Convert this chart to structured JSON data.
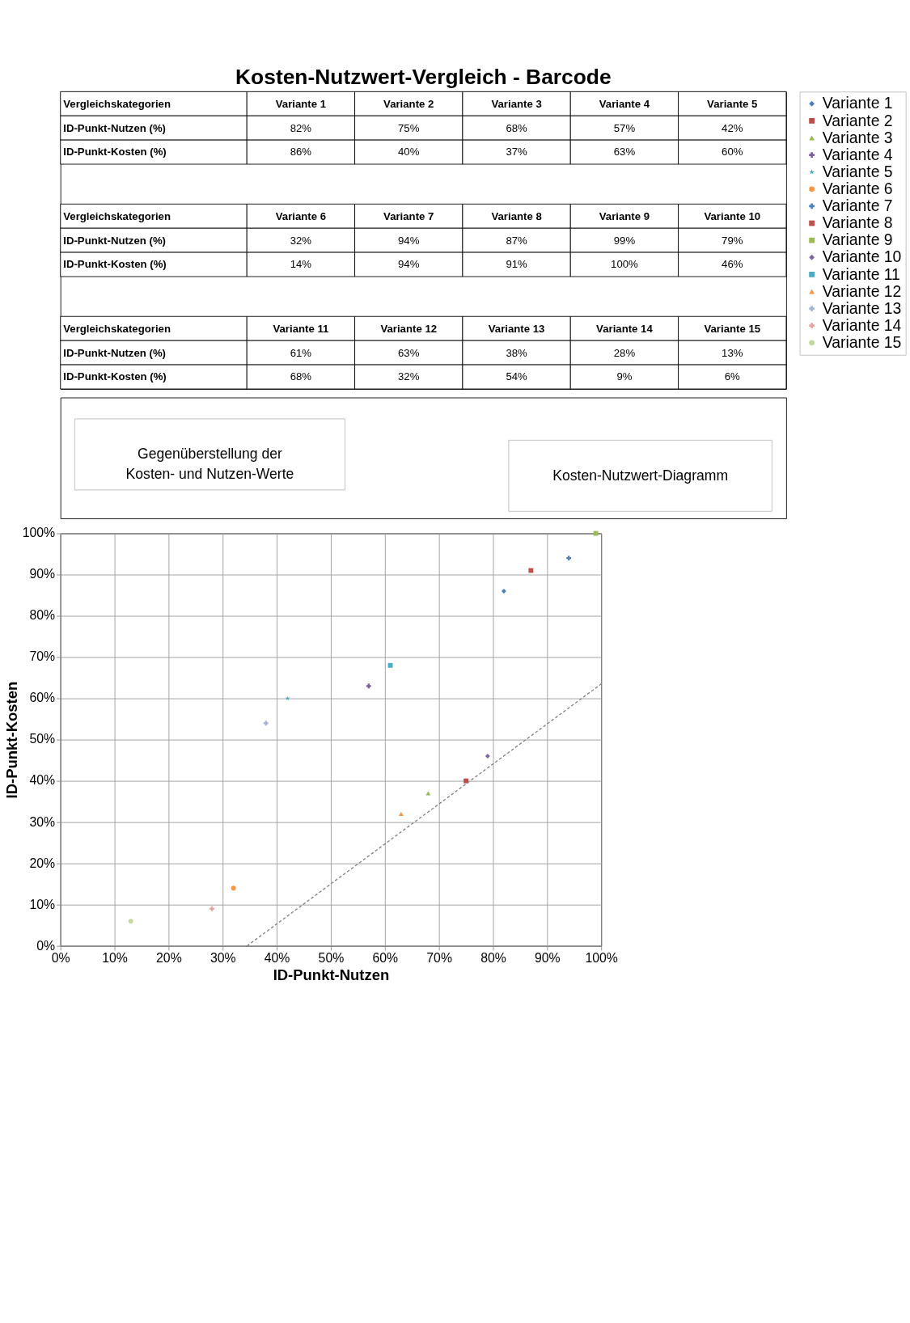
{
  "chart_data": [
    {
      "type": "other",
      "title": "Kosten-Nutzwert-Vergleich - Barcode",
      "annotations": [
        "Vergleichskategorien"
      ],
      "categories": [
        "Variante 1",
        "Variante 2",
        "Variante 3",
        "Variante 4",
        "Variante 5",
        "Variante 6",
        "Variante 7",
        "Variante 8",
        "Variante 9",
        "Variante 10",
        "Variante 11",
        "Variante 12",
        "Variante 13",
        "Variante 14",
        "Variante 15"
      ],
      "series": [
        {
          "name": "ID-Punkt-Nutzen (%)",
          "values": [
            82,
            75,
            68,
            57,
            42,
            32,
            94,
            87,
            99,
            79,
            61,
            63,
            38,
            28,
            13
          ],
          "value_labels": [
            "82%",
            "75%",
            "68%",
            "57%",
            "42%",
            "32%",
            "94%",
            "87%",
            "99%",
            "79%",
            "61%",
            "63%",
            "38%",
            "28%",
            "13%"
          ]
        },
        {
          "name": "ID-Punkt-Kosten (%)",
          "values": [
            86,
            40,
            37,
            63,
            60,
            14,
            94,
            91,
            100,
            46,
            68,
            32,
            54,
            9,
            6
          ],
          "value_labels": [
            "86%",
            "40%",
            "37%",
            "63%",
            "60%",
            "14%",
            "94%",
            "91%",
            "100%",
            "46%",
            "68%",
            "32%",
            "54%",
            "9%",
            "6%"
          ]
        }
      ]
    },
    {
      "type": "scatter",
      "xlabel": "ID-Punkt-Nutzen",
      "ylabel": "ID-Punkt-Kosten",
      "annotations": [
        "Gegenüberstellung der\nKosten- und Nutzen-Werte",
        "Kosten-Nutzwert-Diagramm"
      ],
      "series": [
        {
          "name": "Variante 1",
          "color": "#4a7ebb",
          "marker": "diamond",
          "x": [
            82
          ],
          "values": [
            86
          ]
        },
        {
          "name": "Variante 2",
          "color": "#be4b48",
          "marker": "square",
          "x": [
            75
          ],
          "values": [
            40
          ]
        },
        {
          "name": "Variante 3",
          "color": "#98b954",
          "marker": "triangle",
          "x": [
            68
          ],
          "values": [
            37
          ]
        },
        {
          "name": "Variante 4",
          "color": "#7d60a0",
          "marker": "cross",
          "x": [
            57
          ],
          "values": [
            63
          ]
        },
        {
          "name": "Variante 5",
          "color": "#46aac5",
          "marker": "star",
          "x": [
            42
          ],
          "values": [
            60
          ]
        },
        {
          "name": "Variante 6",
          "color": "#f79646",
          "marker": "circle",
          "x": [
            32
          ],
          "values": [
            14
          ]
        },
        {
          "name": "Variante 7",
          "color": "#4f81bd",
          "marker": "cross",
          "x": [
            94
          ],
          "values": [
            94
          ]
        },
        {
          "name": "Variante 8",
          "color": "#c0504d",
          "marker": "square",
          "x": [
            87
          ],
          "values": [
            91
          ]
        },
        {
          "name": "Variante 9",
          "color": "#9bbb59",
          "marker": "square",
          "x": [
            99
          ],
          "values": [
            100
          ]
        },
        {
          "name": "Variante 10",
          "color": "#8064a2",
          "marker": "diamond",
          "x": [
            79
          ],
          "values": [
            46
          ]
        },
        {
          "name": "Variante 11",
          "color": "#4bacc6",
          "marker": "square",
          "x": [
            61
          ],
          "values": [
            68
          ]
        },
        {
          "name": "Variante 12",
          "color": "#f79646",
          "marker": "triangle",
          "x": [
            63
          ],
          "values": [
            32
          ]
        },
        {
          "name": "Variante 13",
          "color": "#a5b6d8",
          "marker": "cross",
          "x": [
            38
          ],
          "values": [
            54
          ]
        },
        {
          "name": "Variante 14",
          "color": "#e6a6a4",
          "marker": "cross",
          "x": [
            28
          ],
          "values": [
            9
          ]
        },
        {
          "name": "Variante 15",
          "color": "#c3d69b",
          "marker": "circle",
          "x": [
            13
          ],
          "values": [
            6
          ]
        },
        {
          "type": "line",
          "color": "#808080",
          "line_style": "dashed",
          "x": [
            34.5,
            100
          ],
          "values": [
            0,
            63.5
          ]
        }
      ],
      "xlim": [
        0,
        100
      ],
      "ylim": [
        0,
        100
      ],
      "xticks": [
        {
          "value": 0,
          "label": "0%"
        },
        {
          "value": 10,
          "label": "10%"
        },
        {
          "value": 20,
          "label": "20%"
        },
        {
          "value": 30,
          "label": "30%"
        },
        {
          "value": 40,
          "label": "40%"
        },
        {
          "value": 50,
          "label": "50%"
        },
        {
          "value": 60,
          "label": "60%"
        },
        {
          "value": 70,
          "label": "70%"
        },
        {
          "value": 80,
          "label": "80%"
        },
        {
          "value": 90,
          "label": "90%"
        },
        {
          "value": 100,
          "label": "100%"
        }
      ],
      "yticks": [
        {
          "value": 0,
          "label": "0%"
        },
        {
          "value": 10,
          "label": "10%"
        },
        {
          "value": 20,
          "label": "20%"
        },
        {
          "value": 30,
          "label": "30%"
        },
        {
          "value": 40,
          "label": "40%"
        },
        {
          "value": 50,
          "label": "50%"
        },
        {
          "value": 60,
          "label": "60%"
        },
        {
          "value": 70,
          "label": "70%"
        },
        {
          "value": 80,
          "label": "80%"
        },
        {
          "value": 90,
          "label": "90%"
        },
        {
          "value": 100,
          "label": "100%"
        }
      ],
      "grid": true,
      "legend": "right"
    }
  ]
}
